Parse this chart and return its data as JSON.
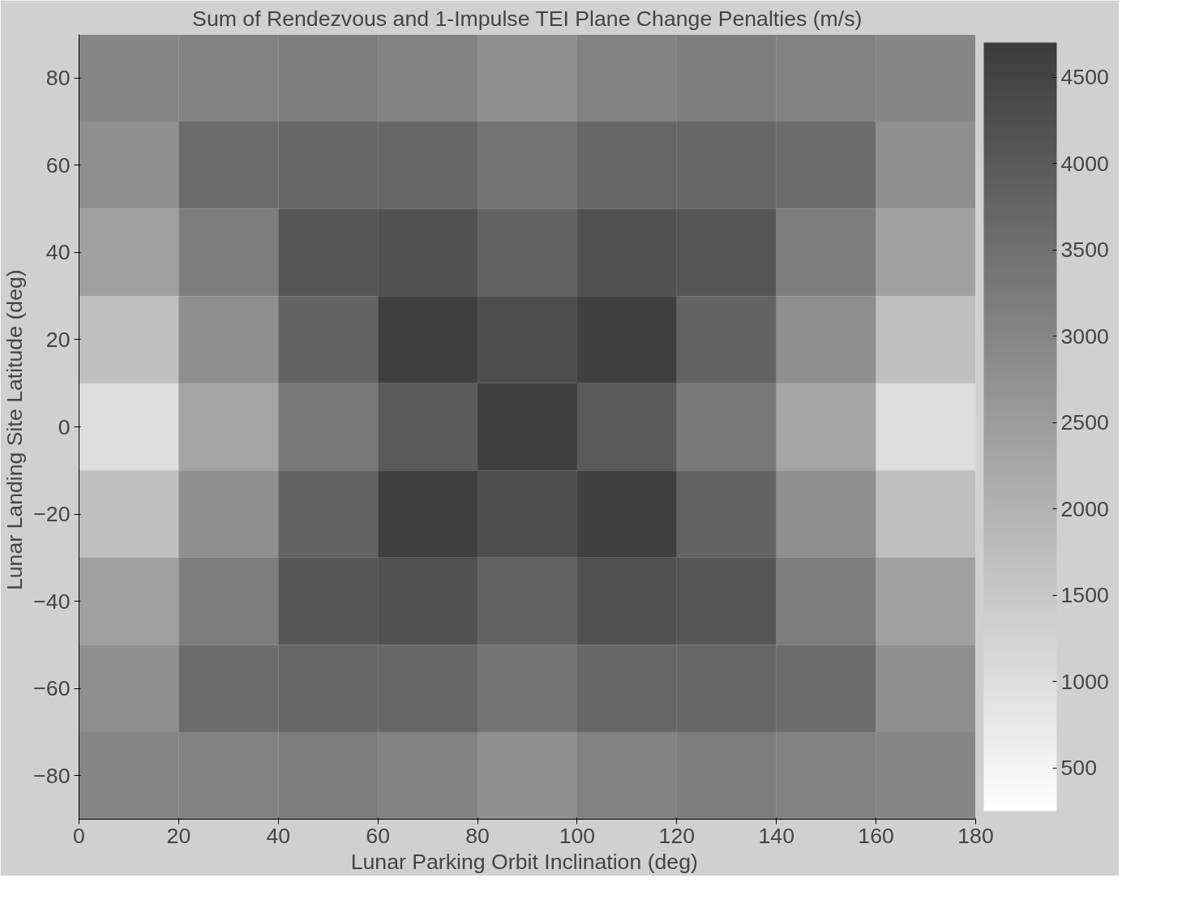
{
  "chart_data": {
    "type": "heatmap",
    "title": "Sum of Rendezvous and 1-Impulse TEI Plane Change Penalties (m/s)",
    "xlabel": "Lunar Parking Orbit Inclination  (deg)",
    "ylabel": "Lunar Landing Site Latitude  (deg)",
    "x": [
      10,
      30,
      50,
      70,
      90,
      110,
      130,
      150,
      170
    ],
    "y": [
      80,
      60,
      40,
      20,
      0,
      -20,
      -40,
      -60,
      -80
    ],
    "cells": [
      [
        3000,
        3100,
        3200,
        3100,
        2800,
        3100,
        3200,
        3100,
        3000
      ],
      [
        2800,
        3600,
        3700,
        3700,
        3400,
        3700,
        3700,
        3600,
        2800
      ],
      [
        2400,
        3200,
        4100,
        4200,
        3800,
        4200,
        4100,
        3200,
        2400
      ],
      [
        1700,
        2800,
        3800,
        4600,
        4300,
        4600,
        3800,
        2800,
        1700
      ],
      [
        1000,
        2300,
        3300,
        4000,
        4600,
        4000,
        3300,
        2300,
        1000
      ],
      [
        1700,
        2800,
        3800,
        4600,
        4300,
        4600,
        3800,
        2800,
        1700
      ],
      [
        2400,
        3200,
        4100,
        4200,
        3800,
        4200,
        4100,
        3200,
        2400
      ],
      [
        2800,
        3600,
        3700,
        3700,
        3400,
        3700,
        3700,
        3600,
        2800
      ],
      [
        3000,
        3100,
        3200,
        3100,
        2800,
        3100,
        3200,
        3100,
        3000
      ]
    ],
    "xlim": [
      0,
      180
    ],
    "xticks": [
      0,
      20,
      40,
      60,
      80,
      100,
      120,
      140,
      160,
      180
    ],
    "ylim": [
      -90,
      90
    ],
    "yticks": [
      -80,
      -60,
      -40,
      -20,
      0,
      20,
      40,
      60,
      80
    ],
    "clim": [
      250,
      4700
    ],
    "cticks": [
      500,
      1000,
      1500,
      2000,
      2500,
      3000,
      3500,
      4000,
      4500
    ]
  }
}
